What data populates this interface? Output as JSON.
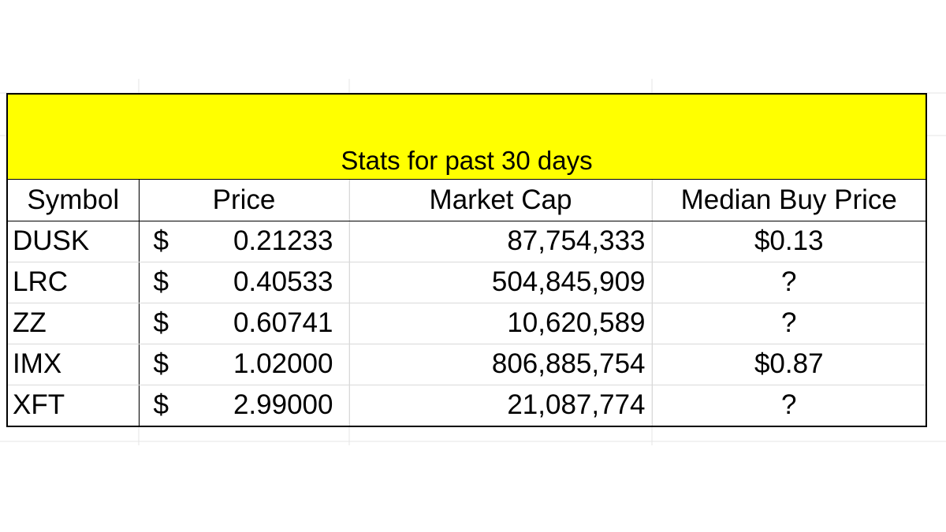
{
  "table": {
    "title": "Stats for past 30 days",
    "headers": {
      "symbol": "Symbol",
      "price": "Price",
      "market_cap": "Market Cap",
      "median_buy_price": "Median Buy Price"
    },
    "currency_symbol": "$",
    "rows": [
      {
        "symbol": "DUSK",
        "price": "0.21233",
        "market_cap": "87,754,333",
        "median_buy_price": "$0.13"
      },
      {
        "symbol": "LRC",
        "price": "0.40533",
        "market_cap": "504,845,909",
        "median_buy_price": "?"
      },
      {
        "symbol": "ZZ",
        "price": "0.60741",
        "market_cap": "10,620,589",
        "median_buy_price": "?"
      },
      {
        "symbol": "IMX",
        "price": "1.02000",
        "market_cap": "806,885,754",
        "median_buy_price": "$0.87"
      },
      {
        "symbol": "XFT",
        "price": "2.99000",
        "market_cap": "21,087,774",
        "median_buy_price": "?"
      }
    ]
  },
  "colors": {
    "title_band": "#ffff00",
    "border": "#000000",
    "gridline": "#d9d9d9"
  }
}
